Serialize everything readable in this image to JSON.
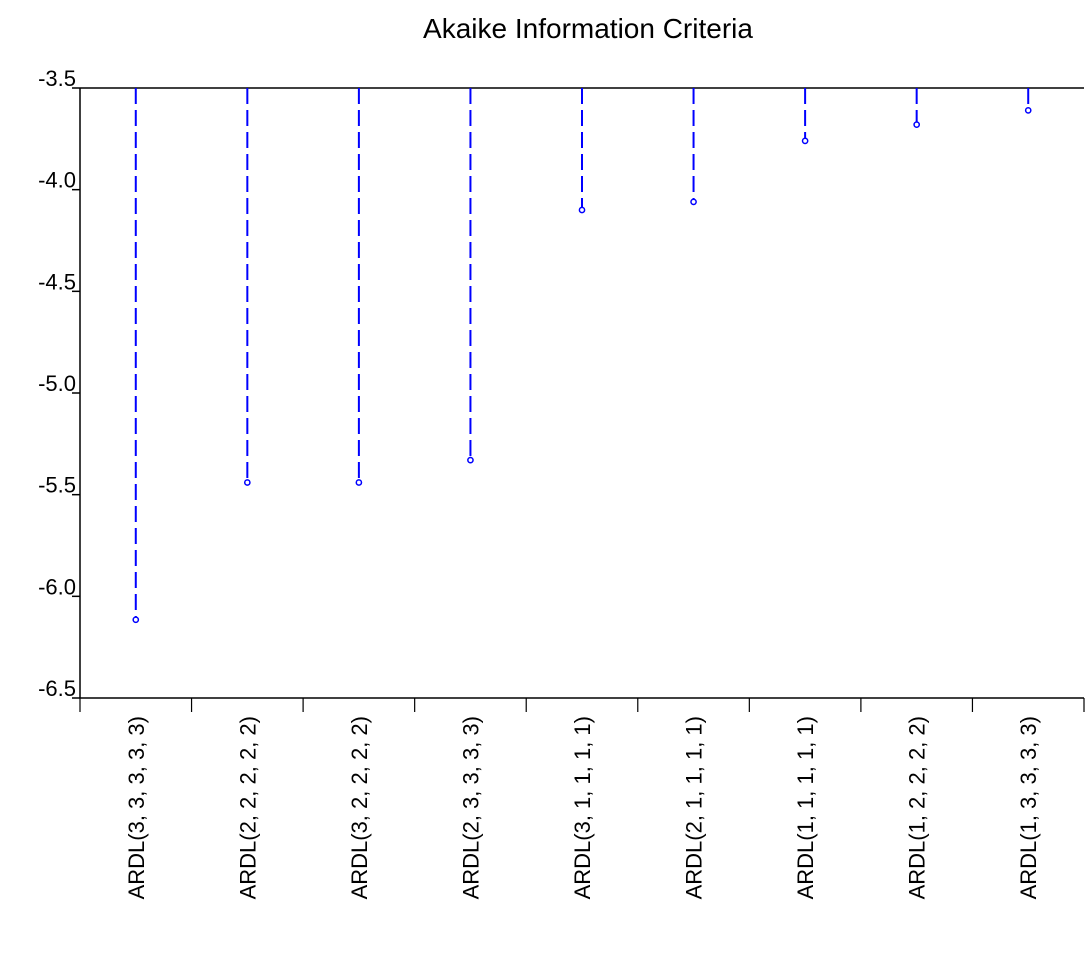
{
  "chart_data": {
    "type": "scatter",
    "style": "dropline",
    "title": "Akaike Information Criteria",
    "xlabel": "",
    "ylabel": "",
    "categories": [
      "ARDL(3, 3, 3, 3, 3)",
      "ARDL(2, 2, 2, 2, 2)",
      "ARDL(3, 2, 2, 2, 2)",
      "ARDL(2, 3, 3, 3, 3)",
      "ARDL(3, 1, 1, 1, 1)",
      "ARDL(2, 1, 1, 1, 1)",
      "ARDL(1, 1, 1, 1, 1)",
      "ARDL(1, 2, 2, 2, 2)",
      "ARDL(1, 3, 3, 3, 3)"
    ],
    "values": [
      -6.115,
      -5.44,
      -5.44,
      -5.33,
      -4.1,
      -4.06,
      -3.76,
      -3.68,
      -3.61
    ],
    "ylim": [
      -6.5,
      -3.5
    ],
    "yticks": [
      "-3.5",
      "-4.0",
      "-4.5",
      "-5.0",
      "-5.5",
      "-6.0",
      "-6.5"
    ],
    "ytick_values": [
      -3.5,
      -4.0,
      -4.5,
      -5.0,
      -5.5,
      -6.0,
      -6.5
    ],
    "grid": false,
    "legend": "none",
    "colors": {
      "series": "#0000ff",
      "axis": "#000000"
    }
  }
}
